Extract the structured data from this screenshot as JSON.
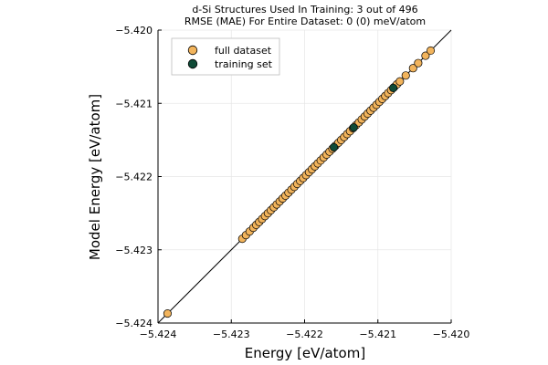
{
  "chart_data": {
    "type": "scatter",
    "title_lines": [
      "d-Si Structures Used In Training:  3 out of 496",
      "RMSE (MAE) For Entire Dataset:  0 (0) meV/atom"
    ],
    "xlabel": "Energy [eV/atom]",
    "ylabel": "Model Energy [eV/atom]",
    "xlim": [
      -5.424,
      -5.42
    ],
    "ylim": [
      -5.424,
      -5.42
    ],
    "xticks": [
      -5.424,
      -5.423,
      -5.422,
      -5.421,
      -5.42
    ],
    "yticks": [
      -5.424,
      -5.423,
      -5.422,
      -5.421,
      -5.42
    ],
    "xtick_labels": [
      "−5.424",
      "−5.423",
      "−5.422",
      "−5.421",
      "−5.420"
    ],
    "ytick_labels": [
      "−5.424",
      "−5.423",
      "−5.422",
      "−5.421",
      "−5.420"
    ],
    "grid": true,
    "legend_position": "top-left",
    "reference_line": {
      "type": "identity",
      "color": "#000000"
    },
    "series": [
      {
        "name": "full dataset",
        "color": "#F2B45C",
        "x": [
          -5.42387,
          -5.42285,
          -5.4228,
          -5.42275,
          -5.4227,
          -5.42266,
          -5.42262,
          -5.42258,
          -5.42254,
          -5.4225,
          -5.42246,
          -5.42242,
          -5.42238,
          -5.42234,
          -5.4223,
          -5.42226,
          -5.42222,
          -5.42218,
          -5.42214,
          -5.4221,
          -5.42206,
          -5.42202,
          -5.42198,
          -5.42194,
          -5.4219,
          -5.42186,
          -5.42182,
          -5.42178,
          -5.42174,
          -5.4217,
          -5.42166,
          -5.42162,
          -5.42158,
          -5.42154,
          -5.4215,
          -5.42146,
          -5.42142,
          -5.42138,
          -5.42134,
          -5.4213,
          -5.42126,
          -5.42122,
          -5.42118,
          -5.42114,
          -5.4211,
          -5.42106,
          -5.42102,
          -5.42098,
          -5.42094,
          -5.4209,
          -5.42086,
          -5.42082,
          -5.42078,
          -5.42074,
          -5.4207,
          -5.42062,
          -5.42052,
          -5.42045,
          -5.42035,
          -5.42028
        ],
        "y": [
          -5.42387,
          -5.42285,
          -5.4228,
          -5.42275,
          -5.4227,
          -5.42266,
          -5.42262,
          -5.42258,
          -5.42254,
          -5.4225,
          -5.42246,
          -5.42242,
          -5.42238,
          -5.42234,
          -5.4223,
          -5.42226,
          -5.42222,
          -5.42218,
          -5.42214,
          -5.4221,
          -5.42206,
          -5.42202,
          -5.42198,
          -5.42194,
          -5.4219,
          -5.42186,
          -5.42182,
          -5.42178,
          -5.42174,
          -5.4217,
          -5.42166,
          -5.42162,
          -5.42158,
          -5.42154,
          -5.4215,
          -5.42146,
          -5.42142,
          -5.42138,
          -5.42134,
          -5.4213,
          -5.42126,
          -5.42122,
          -5.42118,
          -5.42114,
          -5.4211,
          -5.42106,
          -5.42102,
          -5.42098,
          -5.42094,
          -5.4209,
          -5.42086,
          -5.42082,
          -5.42078,
          -5.42074,
          -5.4207,
          -5.42062,
          -5.42052,
          -5.42045,
          -5.42035,
          -5.42028
        ]
      },
      {
        "name": "training set",
        "color": "#0F4B37",
        "x": [
          -5.4216,
          -5.42133,
          -5.42079
        ],
        "y": [
          -5.4216,
          -5.42133,
          -5.42079
        ]
      }
    ]
  }
}
